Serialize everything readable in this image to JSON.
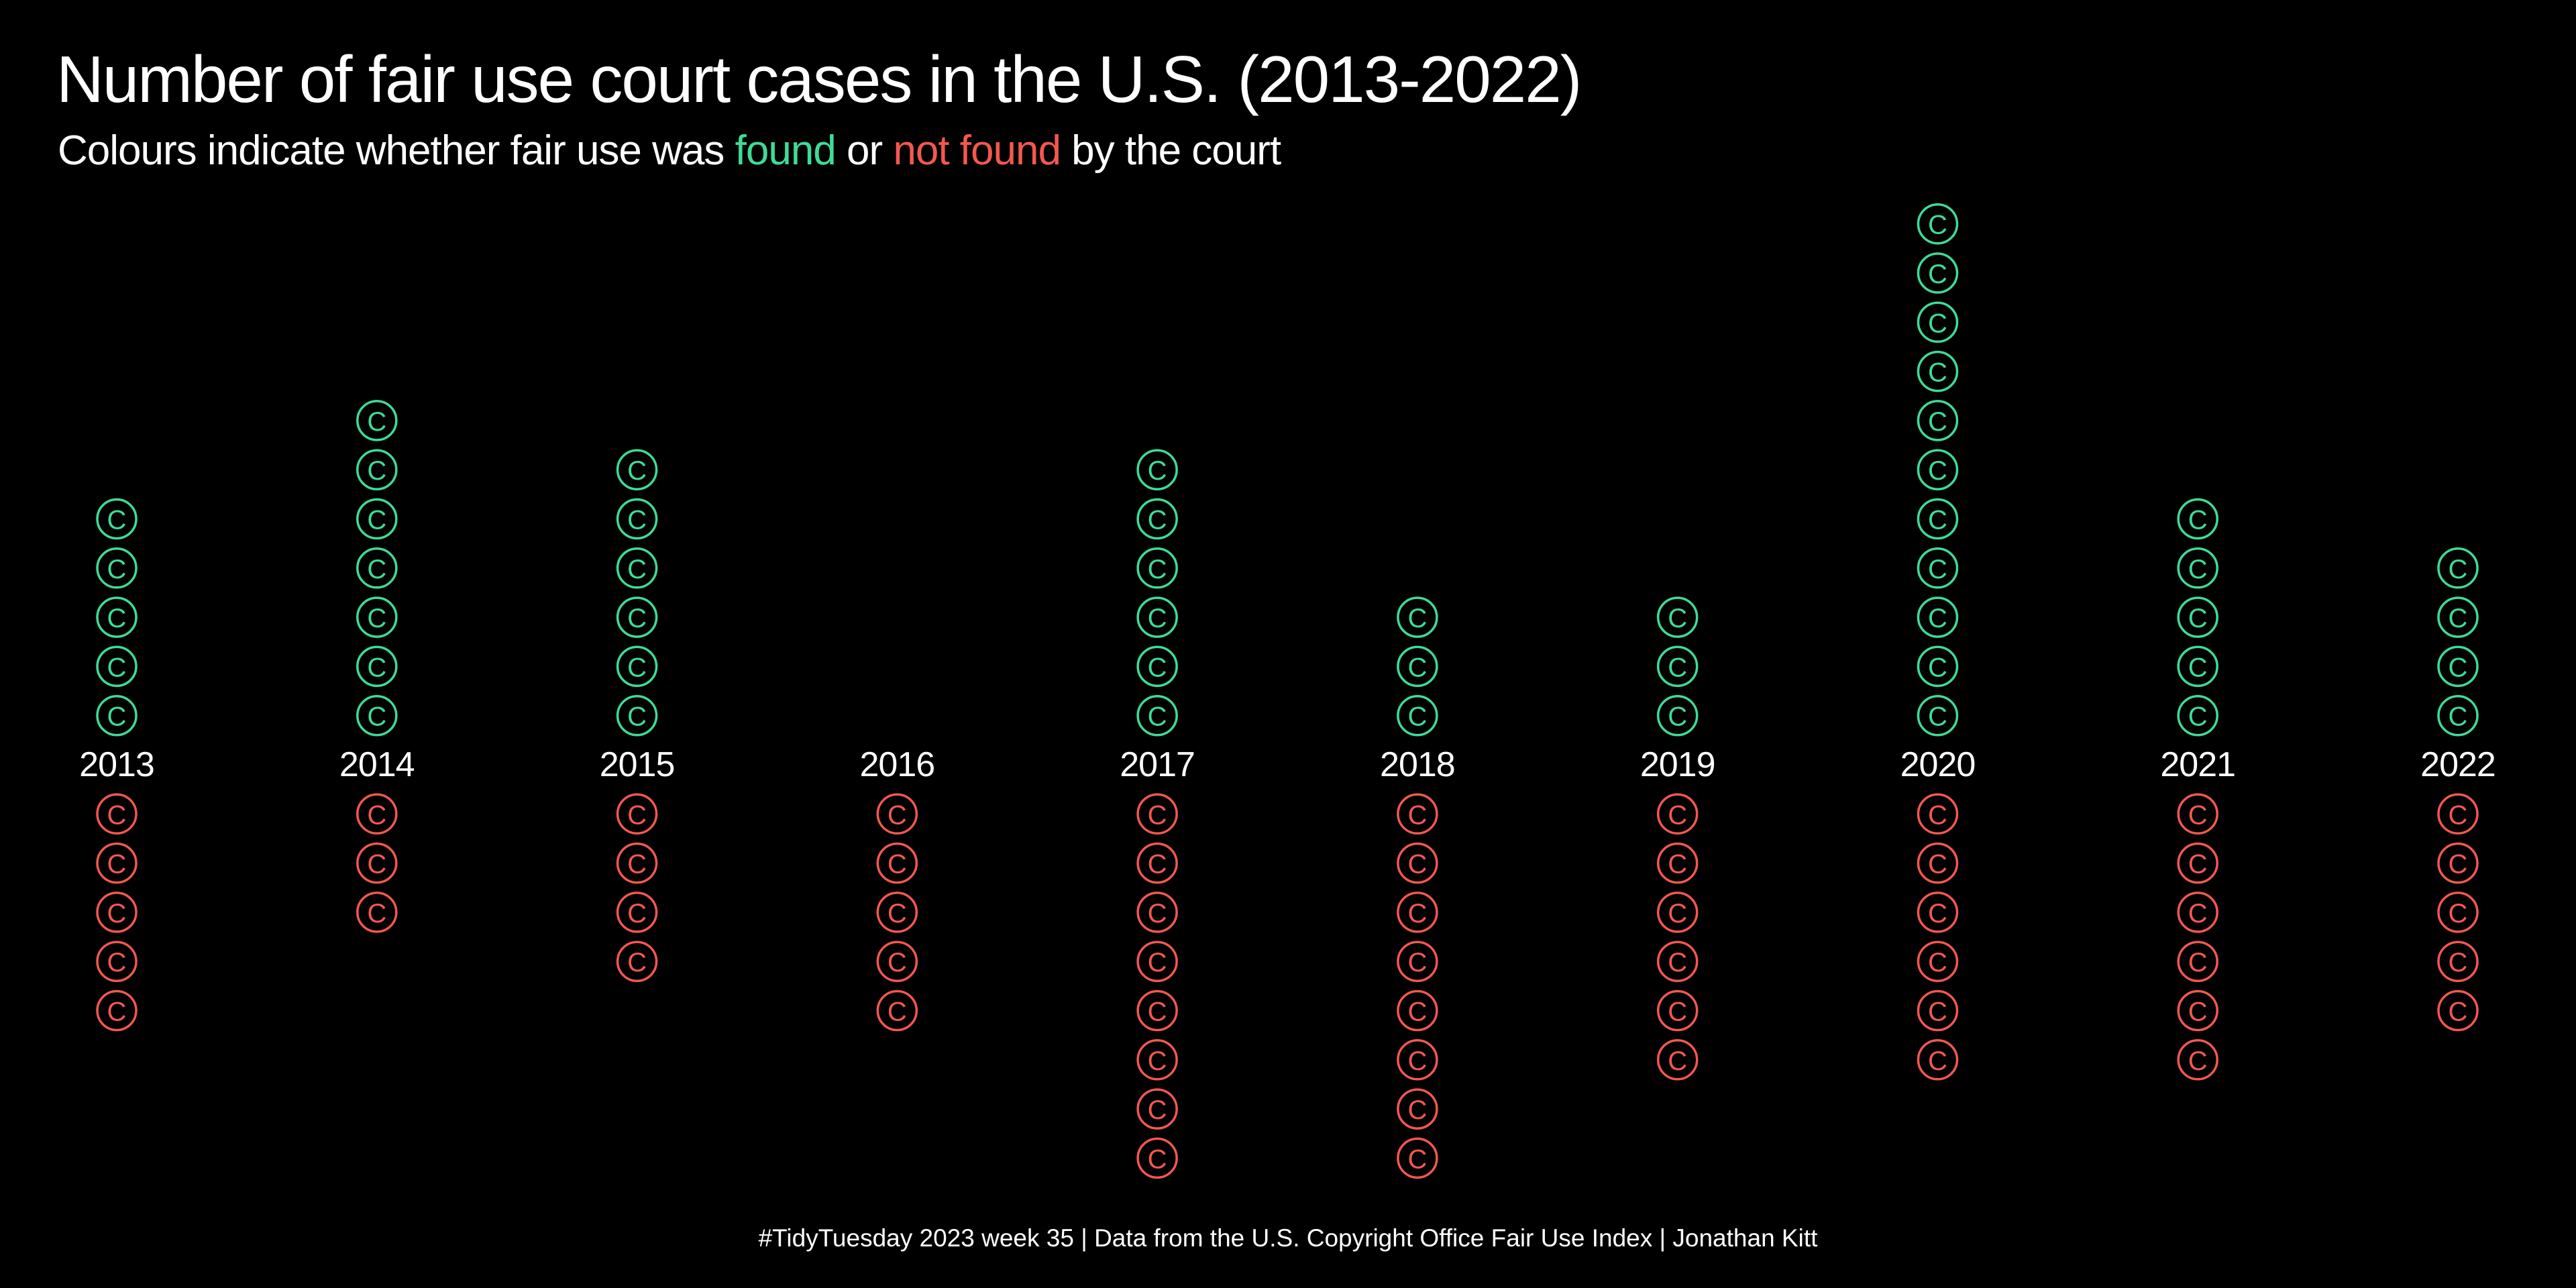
{
  "header": {
    "title": "Number of fair use court cases in the U.S. (2013-2022)",
    "subtitle_prefix": "Colours indicate whether fair use was ",
    "subtitle_found": "found",
    "subtitle_or": " or ",
    "subtitle_not_found": "not found",
    "subtitle_suffix": " by the court"
  },
  "caption": "#TidyTuesday 2023 week 35 | Data from the U.S. Copyright Office Fair Use Index | Jonathan Kitt",
  "colors": {
    "background": "#000000",
    "text": "#ffffff",
    "found": "#3ddc97",
    "not_found": "#f2584f"
  },
  "mark_glyph": "C",
  "chart_data": {
    "type": "unit-dot",
    "title": "Number of fair use court cases in the U.S. (2013-2022)",
    "categories": [
      "2013",
      "2014",
      "2015",
      "2016",
      "2017",
      "2018",
      "2019",
      "2020",
      "2021",
      "2022"
    ],
    "series": [
      {
        "name": "found",
        "direction": "up",
        "values": [
          5,
          7,
          6,
          0,
          6,
          3,
          3,
          11,
          5,
          4
        ]
      },
      {
        "name": "not found",
        "direction": "down",
        "values": [
          5,
          3,
          4,
          5,
          8,
          8,
          6,
          6,
          6,
          5
        ]
      }
    ],
    "grid": false,
    "legend": "none"
  }
}
